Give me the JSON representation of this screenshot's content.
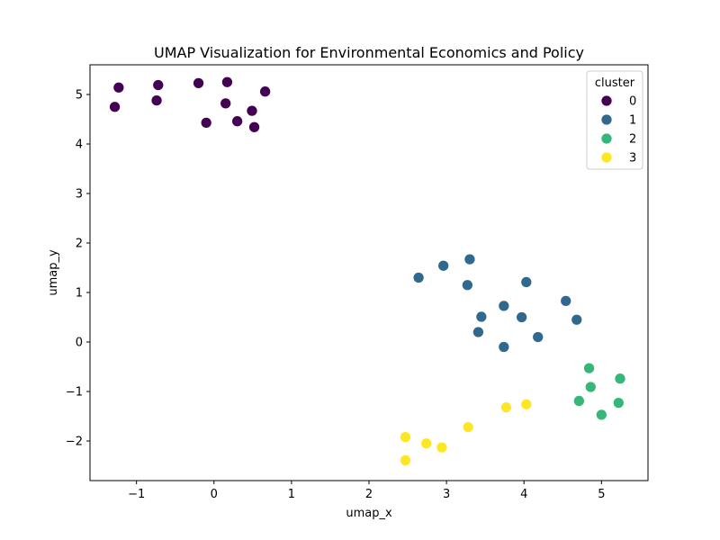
{
  "chart_data": {
    "type": "scatter",
    "title": "UMAP Visualization for Environmental Economics and Policy",
    "xlabel": "umap_x",
    "ylabel": "umap_y",
    "xlim": [
      -1.6,
      5.6
    ],
    "ylim": [
      -2.8,
      5.6
    ],
    "xticks": [
      -1,
      0,
      1,
      2,
      3,
      4,
      5
    ],
    "yticks": [
      -2,
      -1,
      0,
      1,
      2,
      3,
      4,
      5
    ],
    "grid": false,
    "legend": {
      "title": "cluster",
      "placement": "top-right"
    },
    "series": [
      {
        "name": "0",
        "color": "#440154",
        "points": [
          [
            -1.23,
            5.14
          ],
          [
            -1.28,
            4.75
          ],
          [
            -0.72,
            5.19
          ],
          [
            -0.74,
            4.88
          ],
          [
            -0.2,
            5.23
          ],
          [
            0.17,
            5.25
          ],
          [
            0.15,
            4.82
          ],
          [
            -0.1,
            4.43
          ],
          [
            0.3,
            4.46
          ],
          [
            0.49,
            4.67
          ],
          [
            0.52,
            4.34
          ],
          [
            0.66,
            5.06
          ]
        ]
      },
      {
        "name": "1",
        "color": "#31688e",
        "points": [
          [
            2.64,
            1.3
          ],
          [
            2.96,
            1.54
          ],
          [
            3.3,
            1.67
          ],
          [
            3.27,
            1.15
          ],
          [
            3.45,
            0.51
          ],
          [
            3.41,
            0.2
          ],
          [
            3.74,
            0.73
          ],
          [
            3.74,
            -0.1
          ],
          [
            3.97,
            0.5
          ],
          [
            4.03,
            1.21
          ],
          [
            4.18,
            0.1
          ],
          [
            4.54,
            0.83
          ],
          [
            4.68,
            0.45
          ]
        ]
      },
      {
        "name": "2",
        "color": "#35b779",
        "points": [
          [
            4.84,
            -0.53
          ],
          [
            4.86,
            -0.91
          ],
          [
            4.71,
            -1.19
          ],
          [
            5.0,
            -1.47
          ],
          [
            5.22,
            -1.23
          ],
          [
            5.24,
            -0.74
          ]
        ]
      },
      {
        "name": "3",
        "color": "#fde725",
        "points": [
          [
            2.47,
            -1.92
          ],
          [
            2.47,
            -2.39
          ],
          [
            2.74,
            -2.05
          ],
          [
            2.94,
            -2.13
          ],
          [
            3.28,
            -1.72
          ],
          [
            3.77,
            -1.32
          ],
          [
            4.03,
            -1.26
          ]
        ]
      }
    ]
  }
}
